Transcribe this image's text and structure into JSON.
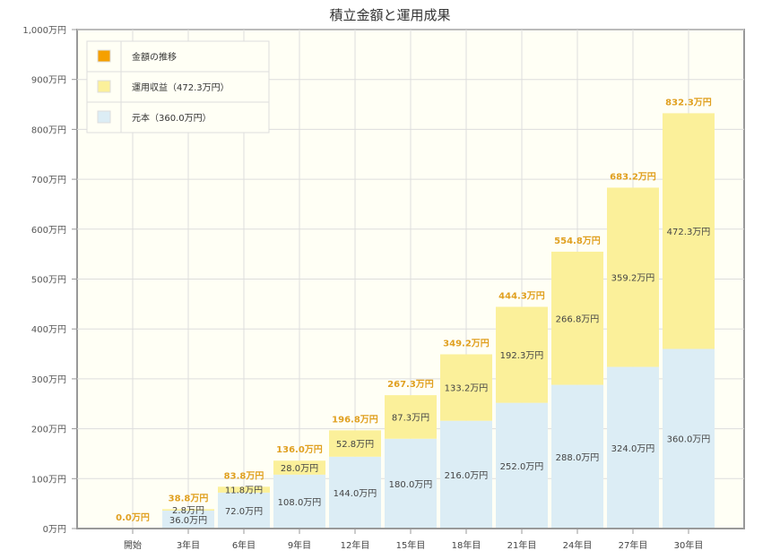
{
  "chart_data": {
    "type": "bar",
    "stacked": true,
    "title": "積立金額と運用成果",
    "categories": [
      "開始",
      "3年目",
      "6年目",
      "9年目",
      "12年目",
      "15年目",
      "18年目",
      "21年目",
      "24年目",
      "27年目",
      "30年目"
    ],
    "series": [
      {
        "name": "元本（360.0万円）",
        "color": "#dcedf5",
        "values": [
          0,
          36.0,
          72.0,
          108.0,
          144.0,
          180.0,
          216.0,
          252.0,
          288.0,
          324.0,
          360.0
        ],
        "labels": [
          "",
          "36.0万円",
          "72.0万円",
          "108.0万円",
          "144.0万円",
          "180.0万円",
          "216.0万円",
          "252.0万円",
          "288.0万円",
          "324.0万円",
          "360.0万円"
        ]
      },
      {
        "name": "運用収益（472.3万円）",
        "color": "#fbf09a",
        "values": [
          0,
          2.8,
          11.8,
          28.0,
          52.8,
          87.3,
          133.2,
          192.3,
          266.8,
          359.2,
          472.3
        ],
        "labels": [
          "",
          "2.8万円",
          "11.8万円",
          "28.0万円",
          "52.8万円",
          "87.3万円",
          "133.2万円",
          "192.3万円",
          "266.8万円",
          "359.2万円",
          "472.3万円"
        ]
      }
    ],
    "totals": {
      "name": "金額の推移",
      "color": "#f5a000",
      "values": [
        0.0,
        38.8,
        83.8,
        136.0,
        196.8,
        267.3,
        349.2,
        444.3,
        554.8,
        683.2,
        832.3
      ],
      "labels": [
        "0.0万円",
        "38.8万円",
        "83.8万円",
        "136.0万円",
        "196.8万円",
        "267.3万円",
        "349.2万円",
        "444.3万円",
        "554.8万円",
        "683.2万円",
        "832.3万円"
      ]
    },
    "ylim": [
      0,
      1000
    ],
    "yticks": [
      0,
      100,
      200,
      300,
      400,
      500,
      600,
      700,
      800,
      900,
      1000
    ],
    "ytick_labels": [
      "0万円",
      "100万円",
      "200万円",
      "300万円",
      "400万円",
      "500万円",
      "600万円",
      "700万円",
      "800万円",
      "900万円",
      "1,000万円"
    ],
    "grid": true,
    "legend": "top-left",
    "legend_order": [
      "金額の推移",
      "運用収益（472.3万円）",
      "元本（360.0万円）"
    ]
  }
}
